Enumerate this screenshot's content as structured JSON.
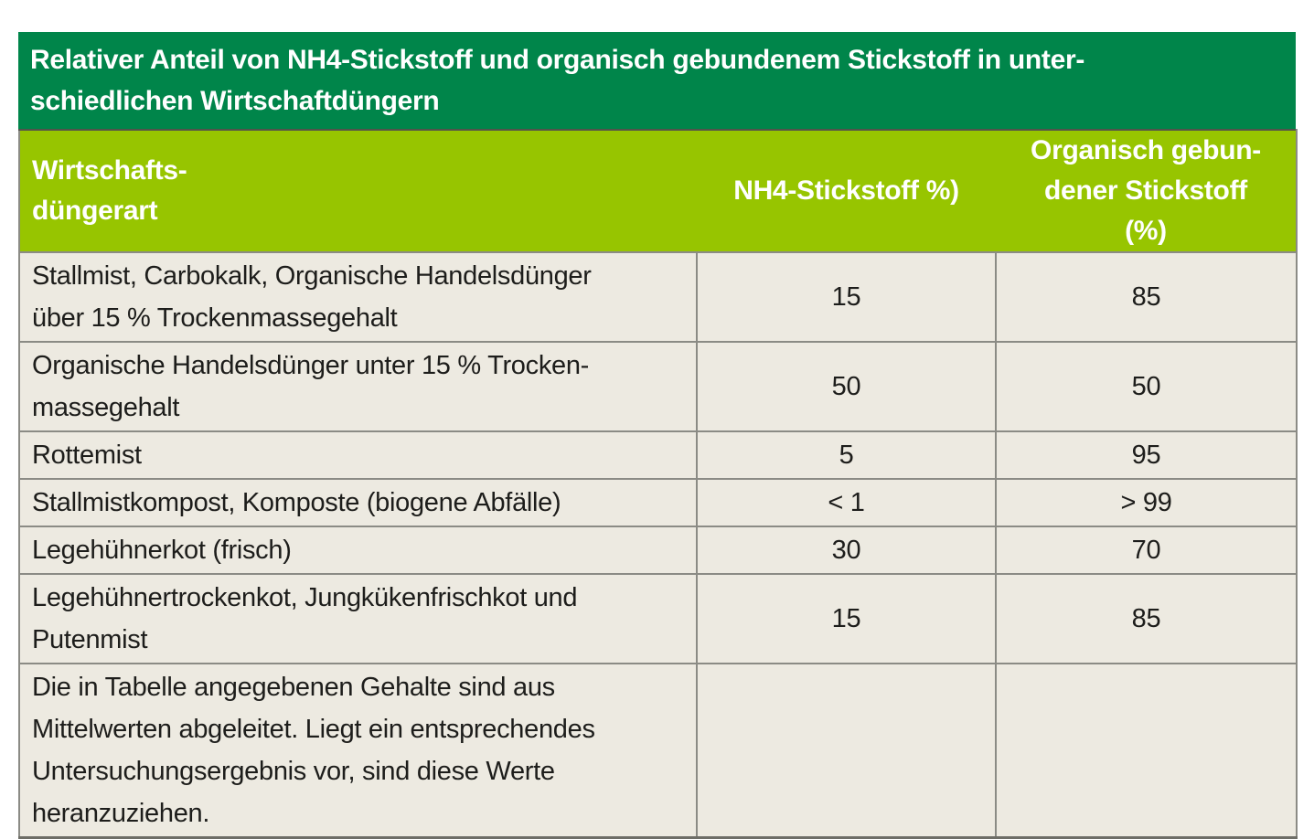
{
  "table": {
    "title": "Relativer Anteil von NH4-Stickstoff und organisch gebundenem Stickstoff in unter-\nschiedlichen Wirtschaftdüngern",
    "columns": {
      "type": "Wirtschafts-\ndüngerart",
      "nh4": "NH4-Stickstoff %)",
      "organic": "Organisch gebun-\ndener Stickstoff\n(%)"
    },
    "rows": [
      {
        "type": "Stallmist, Carbokalk, Organische Handelsdünger\nüber 15 % Trockenmassegehalt",
        "nh4": "15",
        "organic": "85"
      },
      {
        "type": "Organische Handelsdünger unter 15 % Trocken-\nmassegehalt",
        "nh4": "50",
        "organic": "50"
      },
      {
        "type": "Rottemist",
        "nh4": "5",
        "organic": "95"
      },
      {
        "type": "Stallmistkompost, Komposte (biogene Abfälle)",
        "nh4": "< 1",
        "organic": "> 99"
      },
      {
        "type": "Legehühnerkot (frisch)",
        "nh4": "30",
        "organic": "70"
      },
      {
        "type": "Legehühnertrockenkot, Jungkükenfrischkot und\nPutenmist",
        "nh4": "15",
        "organic": "85"
      },
      {
        "type": "Die in Tabelle angegebenen Gehalte sind aus\nMittelwerten abgeleitet. Liegt ein entsprechendes\nUntersuchungsergebnis vor, sind diese Werte\nheranzuziehen.",
        "nh4": "",
        "organic": ""
      }
    ],
    "colors": {
      "title_bg": "#00854a",
      "header_bg": "#97c500",
      "row_bg": "#edeae1",
      "text": "#1d1d1b"
    }
  }
}
